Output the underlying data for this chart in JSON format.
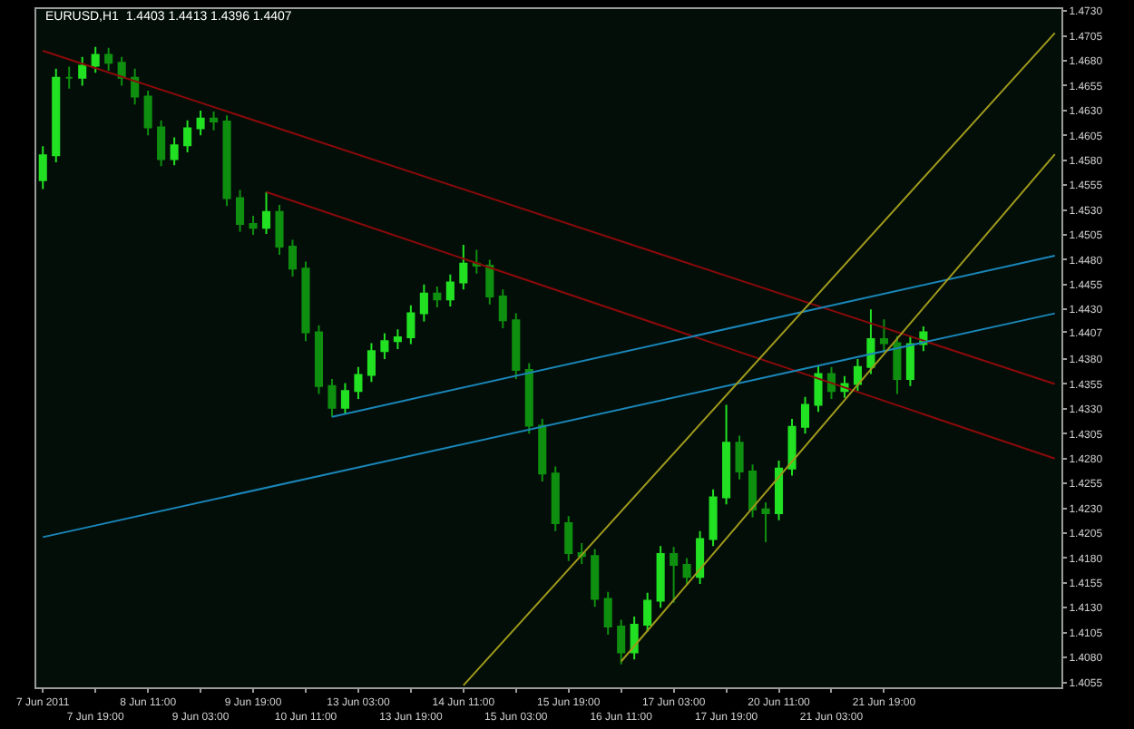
{
  "chart_data": {
    "type": "candlestick",
    "title": "EURUSD,H1  1.4403 1.4413 1.4396 1.4407",
    "categories": [
      "7 Jun 2011",
      null,
      null,
      null,
      "7 Jun 19:00",
      null,
      null,
      null,
      "8 Jun 11:00",
      null,
      null,
      null,
      "9 Jun 03:00",
      null,
      null,
      null,
      "9 Jun 19:00",
      null,
      null,
      null,
      "10 Jun 11:00",
      null,
      null,
      null,
      "13 Jun 03:00",
      null,
      null,
      null,
      "13 Jun 19:00",
      null,
      null,
      null,
      "14 Jun 11:00",
      null,
      null,
      null,
      "15 Jun 03:00",
      null,
      null,
      null,
      "15 Jun 19:00",
      null,
      null,
      null,
      "16 Jun 11:00",
      null,
      null,
      null,
      "17 Jun 03:00",
      null,
      null,
      null,
      "17 Jun 19:00",
      null,
      null,
      null,
      "20 Jun 11:00",
      null,
      null,
      null,
      "21 Jun 03:00",
      null,
      null,
      null,
      "21 Jun 19:00",
      null,
      null,
      null,
      null,
      null,
      null,
      null,
      null,
      null,
      null,
      null,
      null,
      null
    ],
    "ohlc": [
      [
        1.456,
        1.4594,
        1.4551,
        1.4585
      ],
      [
        1.4585,
        1.4672,
        1.4578,
        1.4663
      ],
      [
        1.4663,
        1.4674,
        1.4652,
        1.4663
      ],
      [
        1.4663,
        1.4684,
        1.4655,
        1.4675
      ],
      [
        1.4675,
        1.4694,
        1.4668,
        1.4686
      ],
      [
        1.4686,
        1.4693,
        1.467,
        1.4678
      ],
      [
        1.4678,
        1.4684,
        1.4655,
        1.4663
      ],
      [
        1.4663,
        1.4672,
        1.4636,
        1.4644
      ],
      [
        1.4644,
        1.465,
        1.4605,
        1.4613
      ],
      [
        1.4613,
        1.462,
        1.4574,
        1.4581
      ],
      [
        1.4581,
        1.4603,
        1.4575,
        1.4595
      ],
      [
        1.4595,
        1.462,
        1.4588,
        1.4612
      ],
      [
        1.4612,
        1.463,
        1.4605,
        1.4622
      ],
      [
        1.4622,
        1.4629,
        1.461,
        1.4619
      ],
      [
        1.4619,
        1.4625,
        1.4534,
        1.4542
      ],
      [
        1.4542,
        1.455,
        1.4508,
        1.4516
      ],
      [
        1.4516,
        1.4524,
        1.4505,
        1.4512
      ],
      [
        1.4512,
        1.4548,
        1.4506,
        1.4528
      ],
      [
        1.4528,
        1.4535,
        1.4485,
        1.4493
      ],
      [
        1.4493,
        1.45,
        1.4463,
        1.4471
      ],
      [
        1.4471,
        1.4478,
        1.4398,
        1.4407
      ],
      [
        1.4407,
        1.4414,
        1.4345,
        1.4353
      ],
      [
        1.4353,
        1.436,
        1.4322,
        1.4331
      ],
      [
        1.4331,
        1.4356,
        1.4325,
        1.4348
      ],
      [
        1.4348,
        1.4372,
        1.434,
        1.4364
      ],
      [
        1.4364,
        1.4396,
        1.4357,
        1.4388
      ],
      [
        1.4388,
        1.4406,
        1.438,
        1.4398
      ],
      [
        1.4398,
        1.441,
        1.439,
        1.4402
      ],
      [
        1.4402,
        1.4434,
        1.4395,
        1.4426
      ],
      [
        1.4426,
        1.4455,
        1.4418,
        1.4446
      ],
      [
        1.4446,
        1.4453,
        1.4432,
        1.444
      ],
      [
        1.444,
        1.4465,
        1.4433,
        1.4457
      ],
      [
        1.4457,
        1.4495,
        1.445,
        1.4476
      ],
      [
        1.4476,
        1.449,
        1.4466,
        1.4474
      ],
      [
        1.4474,
        1.448,
        1.4435,
        1.4443
      ],
      [
        1.4443,
        1.445,
        1.4411,
        1.4419
      ],
      [
        1.4419,
        1.4426,
        1.436,
        1.4369
      ],
      [
        1.4369,
        1.4376,
        1.4305,
        1.4313
      ],
      [
        1.4313,
        1.432,
        1.4257,
        1.4265
      ],
      [
        1.4265,
        1.4272,
        1.4207,
        1.4215
      ],
      [
        1.4215,
        1.4222,
        1.4177,
        1.4185
      ],
      [
        1.4185,
        1.4195,
        1.4174,
        1.4182
      ],
      [
        1.4182,
        1.4189,
        1.4131,
        1.4139
      ],
      [
        1.4139,
        1.4146,
        1.4103,
        1.4111
      ],
      [
        1.4111,
        1.4118,
        1.4073,
        1.4085
      ],
      [
        1.4085,
        1.4121,
        1.4078,
        1.4113
      ],
      [
        1.4113,
        1.4145,
        1.4106,
        1.4137
      ],
      [
        1.4137,
        1.4192,
        1.413,
        1.4184
      ],
      [
        1.4184,
        1.4191,
        1.4135,
        1.4173
      ],
      [
        1.4173,
        1.418,
        1.4153,
        1.4161
      ],
      [
        1.4161,
        1.4207,
        1.4154,
        1.4199
      ],
      [
        1.4199,
        1.4249,
        1.4192,
        1.4241
      ],
      [
        1.4241,
        1.4334,
        1.4234,
        1.4296
      ],
      [
        1.4296,
        1.4303,
        1.4259,
        1.4267
      ],
      [
        1.4267,
        1.4274,
        1.4221,
        1.4229
      ],
      [
        1.4229,
        1.4236,
        1.4196,
        1.4225
      ],
      [
        1.4225,
        1.4278,
        1.4218,
        1.427
      ],
      [
        1.427,
        1.432,
        1.4263,
        1.4312
      ],
      [
        1.4312,
        1.4342,
        1.4305,
        1.4334
      ],
      [
        1.4334,
        1.4373,
        1.4327,
        1.4365
      ],
      [
        1.4365,
        1.4372,
        1.434,
        1.4348
      ],
      [
        1.4348,
        1.4363,
        1.4341,
        1.4355
      ],
      [
        1.4355,
        1.438,
        1.4348,
        1.4372
      ],
      [
        1.4372,
        1.443,
        1.4365,
        1.44
      ],
      [
        1.44,
        1.442,
        1.4388,
        1.4396
      ],
      [
        1.4396,
        1.4403,
        1.4345,
        1.436
      ],
      [
        1.436,
        1.4403,
        1.4353,
        1.4395
      ],
      [
        1.4395,
        1.4413,
        1.4388,
        1.4407
      ],
      null,
      null,
      null,
      null,
      null,
      null,
      null,
      null,
      null,
      null
    ],
    "colors": [
      "#22e022",
      "#22e022",
      "#0f8f0f",
      "#22e022",
      "#22e022",
      "#0f8f0f",
      "#0f8f0f",
      "#0f8f0f",
      "#0f8f0f",
      "#0f8f0f",
      "#22e022",
      "#22e022",
      "#22e022",
      "#0f8f0f",
      "#0f8f0f",
      "#0f8f0f",
      "#0f8f0f",
      "#22e022",
      "#0f8f0f",
      "#0f8f0f",
      "#0f8f0f",
      "#0f8f0f",
      "#0f8f0f",
      "#22e022",
      "#22e022",
      "#22e022",
      "#22e022",
      "#22e022",
      "#22e022",
      "#22e022",
      "#0f8f0f",
      "#22e022",
      "#22e022",
      "#0f8f0f",
      "#0f8f0f",
      "#0f8f0f",
      "#0f8f0f",
      "#0f8f0f",
      "#0f8f0f",
      "#0f8f0f",
      "#0f8f0f",
      "#0f8f0f",
      "#0f8f0f",
      "#0f8f0f",
      "#0f8f0f",
      "#22e022",
      "#22e022",
      "#22e022",
      "#0f8f0f",
      "#0f8f0f",
      "#22e022",
      "#22e022",
      "#22e022",
      "#0f8f0f",
      "#0f8f0f",
      "#0f8f0f",
      "#22e022",
      "#22e022",
      "#22e022",
      "#22e022",
      "#0f8f0f",
      "#22e022",
      "#22e022",
      "#22e022",
      "#0f8f0f",
      "#0f8f0f",
      "#22e022",
      "#22e022",
      null,
      null,
      null,
      null,
      null,
      null,
      null,
      null,
      null,
      null
    ],
    "series": [
      {
        "type": "line",
        "color": "#8b0a0a",
        "values": [
          1.469,
          null,
          null,
          null,
          null,
          null,
          null,
          null,
          null,
          null,
          null,
          null,
          null,
          null,
          null,
          null,
          null,
          null,
          null,
          null,
          null,
          null,
          null,
          null,
          null,
          null,
          null,
          null,
          null,
          null,
          null,
          null,
          null,
          null,
          null,
          null,
          null,
          null,
          null,
          null,
          null,
          null,
          null,
          null,
          null,
          null,
          null,
          null,
          null,
          null,
          null,
          null,
          null,
          null,
          null,
          null,
          null,
          null,
          null,
          null,
          null,
          null,
          null,
          null,
          null,
          null,
          null,
          null,
          null,
          null,
          null,
          null,
          null,
          null,
          null,
          null,
          null,
          1.4355
        ]
      },
      {
        "type": "line",
        "color": "#8b0a0a",
        "values": [
          null,
          null,
          null,
          null,
          null,
          null,
          null,
          null,
          null,
          null,
          null,
          null,
          null,
          null,
          null,
          null,
          null,
          1.4548,
          null,
          null,
          null,
          null,
          null,
          null,
          null,
          null,
          null,
          null,
          null,
          null,
          null,
          null,
          null,
          null,
          null,
          null,
          null,
          null,
          null,
          null,
          null,
          null,
          null,
          null,
          null,
          null,
          null,
          null,
          null,
          null,
          null,
          null,
          null,
          null,
          null,
          null,
          null,
          null,
          null,
          null,
          null,
          null,
          null,
          null,
          null,
          null,
          null,
          null,
          null,
          null,
          null,
          null,
          null,
          null,
          null,
          null,
          null,
          1.428
        ]
      },
      {
        "type": "line",
        "color": "#1a86b8",
        "values": [
          null,
          null,
          null,
          null,
          null,
          null,
          null,
          null,
          null,
          null,
          null,
          null,
          null,
          null,
          null,
          null,
          null,
          null,
          null,
          null,
          null,
          null,
          1.4322,
          null,
          null,
          null,
          null,
          null,
          null,
          null,
          null,
          null,
          null,
          null,
          null,
          null,
          null,
          null,
          null,
          null,
          null,
          null,
          null,
          null,
          null,
          null,
          null,
          null,
          null,
          null,
          null,
          null,
          null,
          null,
          null,
          null,
          null,
          null,
          null,
          null,
          null,
          null,
          null,
          null,
          null,
          null,
          null,
          null,
          null,
          null,
          null,
          null,
          null,
          null,
          null,
          null,
          null,
          1.4484
        ]
      },
      {
        "type": "line",
        "color": "#1a86b8",
        "values": [
          1.4201,
          null,
          null,
          null,
          null,
          null,
          null,
          null,
          null,
          null,
          null,
          null,
          null,
          null,
          null,
          null,
          null,
          null,
          null,
          null,
          null,
          null,
          null,
          null,
          null,
          null,
          null,
          null,
          null,
          null,
          null,
          null,
          null,
          null,
          null,
          null,
          null,
          null,
          null,
          null,
          null,
          null,
          null,
          null,
          null,
          null,
          null,
          null,
          null,
          null,
          null,
          null,
          null,
          null,
          null,
          null,
          null,
          null,
          null,
          null,
          null,
          null,
          null,
          null,
          null,
          null,
          null,
          null,
          null,
          null,
          null,
          null,
          null,
          null,
          null,
          null,
          null,
          1.4426
        ]
      },
      {
        "type": "line",
        "color": "#a09a1c",
        "values": [
          null,
          null,
          null,
          null,
          null,
          null,
          null,
          null,
          null,
          null,
          null,
          null,
          null,
          null,
          null,
          null,
          null,
          null,
          null,
          null,
          null,
          null,
          null,
          null,
          null,
          null,
          null,
          null,
          null,
          null,
          null,
          null,
          1.4052,
          null,
          null,
          null,
          null,
          null,
          null,
          null,
          null,
          null,
          null,
          null,
          null,
          null,
          null,
          null,
          null,
          null,
          null,
          null,
          null,
          null,
          null,
          null,
          null,
          null,
          null,
          null,
          null,
          null,
          null,
          null,
          null,
          null,
          null,
          null,
          null,
          null,
          null,
          null,
          null,
          null,
          null,
          null,
          null,
          1.4708
        ]
      },
      {
        "type": "line",
        "color": "#a09a1c",
        "values": [
          null,
          null,
          null,
          null,
          null,
          null,
          null,
          null,
          null,
          null,
          null,
          null,
          null,
          null,
          null,
          null,
          null,
          null,
          null,
          null,
          null,
          null,
          null,
          null,
          null,
          null,
          null,
          null,
          null,
          null,
          null,
          null,
          null,
          null,
          null,
          null,
          null,
          null,
          null,
          null,
          null,
          null,
          null,
          null,
          1.4076,
          null,
          null,
          null,
          null,
          null,
          null,
          null,
          null,
          null,
          null,
          null,
          null,
          null,
          null,
          null,
          null,
          null,
          null,
          null,
          null,
          null,
          null,
          null,
          null,
          null,
          null,
          null,
          null,
          null,
          null,
          null,
          null,
          1.4586
        ]
      }
    ],
    "ylim": [
      1.405,
      1.4732
    ],
    "yticks": [
      1.4055,
      {
        "value": 1.408,
        "label": "1.4080"
      },
      1.4105,
      {
        "value": 1.413,
        "label": "1.4130"
      },
      1.4155,
      {
        "value": 1.418,
        "label": "1.4180"
      },
      1.4205,
      {
        "value": 1.423,
        "label": "1.4230"
      },
      1.4255,
      {
        "value": 1.428,
        "label": "1.4280"
      },
      1.4305,
      {
        "value": 1.433,
        "label": "1.4330"
      },
      1.4355,
      {
        "value": 1.438,
        "label": "1.4380"
      },
      {
        "value": 1.4407,
        "label": "1.4407"
      },
      {
        "value": 1.443,
        "label": "1.4430"
      },
      1.4455,
      {
        "value": 1.448,
        "label": "1.4480"
      },
      1.4505,
      {
        "value": 1.453,
        "label": "1.4530"
      },
      1.4555,
      {
        "value": 1.458,
        "label": "1.4580"
      },
      1.4605,
      {
        "value": 1.463,
        "label": "1.4630"
      },
      1.4655,
      {
        "value": 1.468,
        "label": "1.4680"
      },
      1.4705,
      {
        "value": 1.473,
        "label": "1.4730"
      }
    ]
  }
}
